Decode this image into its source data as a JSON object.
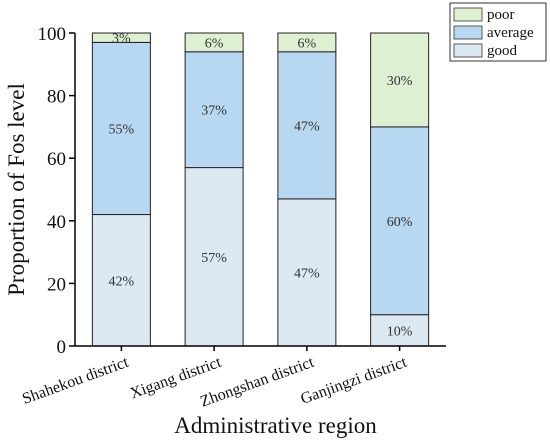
{
  "chart_data": {
    "type": "stacked-bar",
    "xlabel": "Administrative region",
    "ylabel": "Proportion of Fos level",
    "ylim": [
      0,
      100
    ],
    "yticks": [
      0,
      20,
      40,
      60,
      80,
      100
    ],
    "grid": false,
    "legend_position": "top-right",
    "categories": [
      "Shahekou district",
      "Xigang district",
      "Zhongshan district",
      "Ganjingzi district"
    ],
    "series": [
      {
        "name": "good",
        "color": "#dce9f2",
        "values": [
          42,
          57,
          47,
          10
        ],
        "labels": [
          "42%",
          "57%",
          "47%",
          "10%"
        ]
      },
      {
        "name": "average",
        "color": "#b8d8f2",
        "values": [
          55,
          37,
          47,
          60
        ],
        "labels": [
          "55%",
          "37%",
          "47%",
          "60%"
        ]
      },
      {
        "name": "poor",
        "color": "#dff0d2",
        "values": [
          3,
          6,
          6,
          30
        ],
        "labels": [
          "3%",
          "6%",
          "6%",
          "30%"
        ]
      }
    ],
    "legend_order": [
      "poor",
      "average",
      "good"
    ]
  }
}
